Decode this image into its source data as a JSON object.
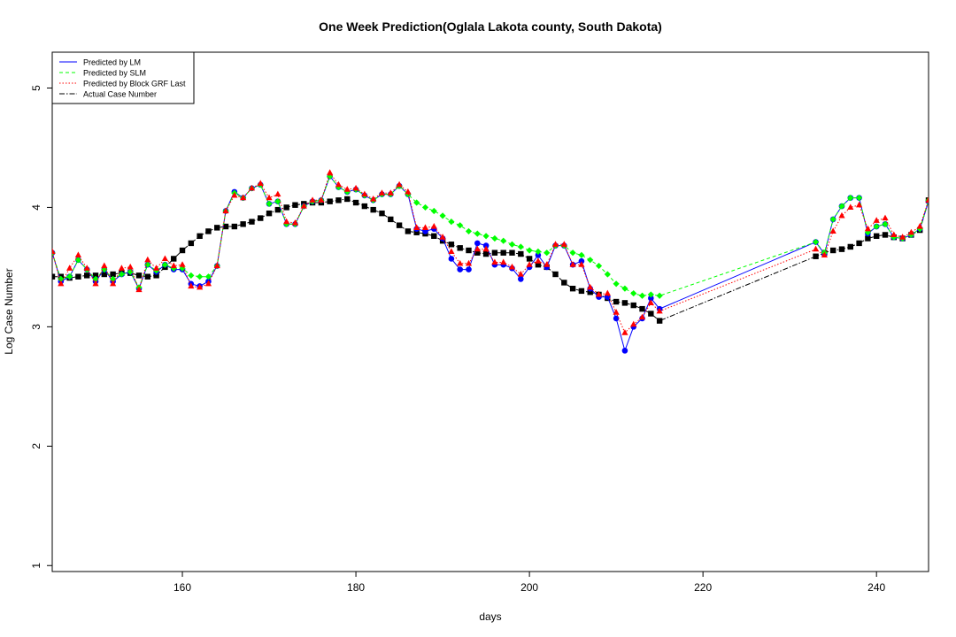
{
  "chart_data": {
    "type": "line",
    "title": "One Week Prediction(Oglala Lakota county, South Dakota)",
    "xlabel": "days",
    "ylabel": "Log Case Number",
    "xlim": [
      145,
      246
    ],
    "ylim": [
      0.95,
      5.3
    ],
    "xticks": [
      160,
      180,
      200,
      220,
      240
    ],
    "yticks": [
      1,
      2,
      3,
      4,
      5
    ],
    "legend_position": "top-left",
    "x": [
      145,
      146,
      147,
      148,
      149,
      150,
      151,
      152,
      153,
      154,
      155,
      156,
      157,
      158,
      159,
      160,
      161,
      162,
      163,
      164,
      165,
      166,
      167,
      168,
      169,
      170,
      171,
      172,
      173,
      174,
      175,
      176,
      177,
      178,
      179,
      180,
      181,
      182,
      183,
      184,
      185,
      186,
      187,
      188,
      189,
      190,
      191,
      192,
      193,
      194,
      195,
      196,
      197,
      198,
      199,
      200,
      201,
      202,
      203,
      204,
      205,
      206,
      207,
      208,
      209,
      210,
      211,
      212,
      213,
      214,
      215,
      233,
      234,
      235,
      236,
      237,
      238,
      239,
      240,
      241,
      242,
      243,
      244,
      245,
      246
    ],
    "series": [
      {
        "name": "Predicted by LM",
        "color": "#0000ff",
        "dash": "",
        "marker": "circle",
        "values": [
          3.62,
          3.38,
          3.42,
          3.56,
          3.48,
          3.38,
          3.48,
          3.38,
          3.44,
          3.46,
          3.32,
          3.52,
          3.46,
          3.52,
          3.48,
          3.48,
          3.36,
          3.34,
          3.38,
          3.51,
          3.97,
          4.13,
          4.08,
          4.16,
          4.19,
          4.03,
          4.05,
          3.86,
          3.86,
          4.01,
          4.05,
          4.06,
          4.26,
          4.17,
          4.13,
          4.15,
          4.1,
          4.06,
          4.11,
          4.11,
          4.18,
          4.11,
          3.82,
          3.8,
          3.82,
          3.74,
          3.57,
          3.48,
          3.48,
          3.7,
          3.68,
          3.52,
          3.52,
          3.49,
          3.4,
          3.5,
          3.6,
          3.5,
          3.68,
          3.68,
          3.52,
          3.55,
          3.32,
          3.25,
          3.25,
          3.07,
          2.8,
          3.0,
          3.07,
          3.24,
          3.15,
          3.71,
          3.61,
          3.9,
          4.01,
          4.08,
          4.08,
          3.78,
          3.84,
          3.86,
          3.75,
          3.74,
          3.77,
          3.82,
          4.05
        ]
      },
      {
        "name": "Predicted by SLM",
        "color": "#00ff00",
        "dash": "4,3",
        "marker": "diamond",
        "values": [
          3.62,
          3.4,
          3.42,
          3.56,
          3.48,
          3.4,
          3.48,
          3.4,
          3.44,
          3.46,
          3.33,
          3.52,
          3.47,
          3.52,
          3.49,
          3.49,
          3.43,
          3.42,
          3.42,
          3.51,
          3.97,
          4.12,
          4.08,
          4.16,
          4.19,
          4.03,
          4.05,
          3.86,
          3.86,
          4.01,
          4.05,
          4.06,
          4.26,
          4.17,
          4.13,
          4.15,
          4.1,
          4.06,
          4.11,
          4.11,
          4.18,
          4.11,
          4.04,
          4.0,
          3.97,
          3.93,
          3.88,
          3.85,
          3.8,
          3.78,
          3.76,
          3.74,
          3.72,
          3.69,
          3.67,
          3.64,
          3.63,
          3.62,
          3.68,
          3.68,
          3.62,
          3.6,
          3.56,
          3.51,
          3.44,
          3.36,
          3.32,
          3.28,
          3.26,
          3.27,
          3.26,
          3.71,
          3.62,
          3.9,
          4.01,
          4.08,
          4.08,
          3.79,
          3.84,
          3.86,
          3.75,
          3.74,
          3.77,
          3.82,
          4.06
        ]
      },
      {
        "name": "Predicted by Block GRF Last",
        "color": "#ff0000",
        "dash": "1.5,2",
        "marker": "triangle",
        "values": [
          3.63,
          3.36,
          3.49,
          3.6,
          3.49,
          3.36,
          3.51,
          3.36,
          3.49,
          3.5,
          3.31,
          3.56,
          3.49,
          3.57,
          3.51,
          3.52,
          3.34,
          3.33,
          3.36,
          3.51,
          3.97,
          4.1,
          4.08,
          4.16,
          4.2,
          4.08,
          4.11,
          3.88,
          3.87,
          4.01,
          4.06,
          4.06,
          4.29,
          4.19,
          4.15,
          4.16,
          4.11,
          4.07,
          4.12,
          4.12,
          4.19,
          4.13,
          3.83,
          3.83,
          3.84,
          3.75,
          3.63,
          3.53,
          3.53,
          3.65,
          3.65,
          3.54,
          3.54,
          3.5,
          3.44,
          3.52,
          3.55,
          3.52,
          3.69,
          3.69,
          3.52,
          3.52,
          3.33,
          3.27,
          3.28,
          3.12,
          2.95,
          3.02,
          3.08,
          3.2,
          3.13,
          3.65,
          3.6,
          3.8,
          3.93,
          4.0,
          4.02,
          3.82,
          3.89,
          3.91,
          3.77,
          3.75,
          3.79,
          3.84,
          4.06
        ]
      },
      {
        "name": "Actual Case Number",
        "color": "#000000",
        "dash": "6,2,1.5,2",
        "marker": "square",
        "values": [
          3.42,
          3.42,
          3.41,
          3.42,
          3.43,
          3.43,
          3.44,
          3.44,
          3.45,
          3.45,
          3.43,
          3.42,
          3.43,
          3.5,
          3.57,
          3.64,
          3.7,
          3.76,
          3.8,
          3.83,
          3.84,
          3.84,
          3.86,
          3.88,
          3.91,
          3.95,
          3.98,
          4.0,
          4.02,
          4.03,
          4.04,
          4.04,
          4.05,
          4.06,
          4.07,
          4.04,
          4.01,
          3.98,
          3.95,
          3.9,
          3.85,
          3.8,
          3.79,
          3.78,
          3.76,
          3.72,
          3.69,
          3.66,
          3.64,
          3.62,
          3.61,
          3.62,
          3.62,
          3.62,
          3.61,
          3.57,
          3.52,
          3.5,
          3.44,
          3.37,
          3.32,
          3.3,
          3.29,
          3.27,
          3.24,
          3.21,
          3.2,
          3.18,
          3.15,
          3.11,
          3.05,
          3.59,
          3.62,
          3.64,
          3.65,
          3.67,
          3.7,
          3.74,
          3.76,
          3.77,
          3.75,
          3.74,
          3.77,
          3.81,
          4.06
        ]
      }
    ]
  }
}
